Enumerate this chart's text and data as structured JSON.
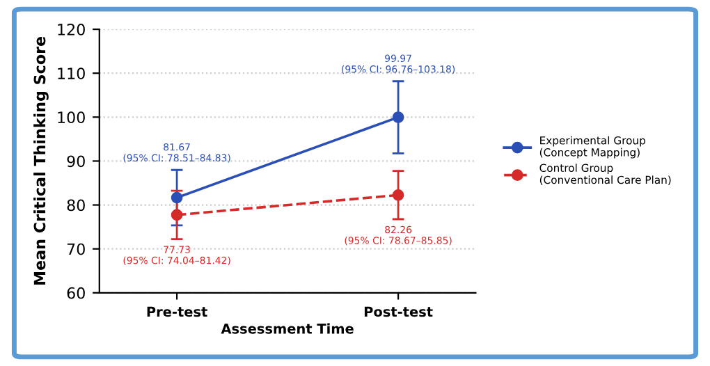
{
  "chart_data": {
    "type": "line",
    "xlabel": "Assessment Time",
    "ylabel": "Mean Critical Thinking Score",
    "categories": [
      "Pre-test",
      "Post-test"
    ],
    "series": [
      {
        "name": "Experimental Group\n(Concept Mapping)",
        "color": "#2b4fb5",
        "values": [
          81.67,
          99.97
        ],
        "errors": [
          6.3,
          8.2
        ],
        "line_style": "solid"
      },
      {
        "name": "Control Group\n(Conventional Care Plan)",
        "color": "#d42a2a",
        "values": [
          77.73,
          82.26
        ],
        "errors": [
          5.5,
          5.5
        ],
        "line_style": "dashed"
      }
    ],
    "annotations": [
      "81.67\n(95% CI: 78.51–84.83)",
      "99.97\n(95% CI: 96.76–103.18)",
      "77.73\n(95% CI: 74.04–81.42)",
      "82.26\n(95% CI: 78.67–85.85)"
    ],
    "ylim": [
      60,
      120
    ],
    "yticks": [
      60,
      70,
      80,
      90,
      100,
      110,
      120
    ],
    "grid": "y",
    "legend": "right",
    "marker": "circle"
  }
}
